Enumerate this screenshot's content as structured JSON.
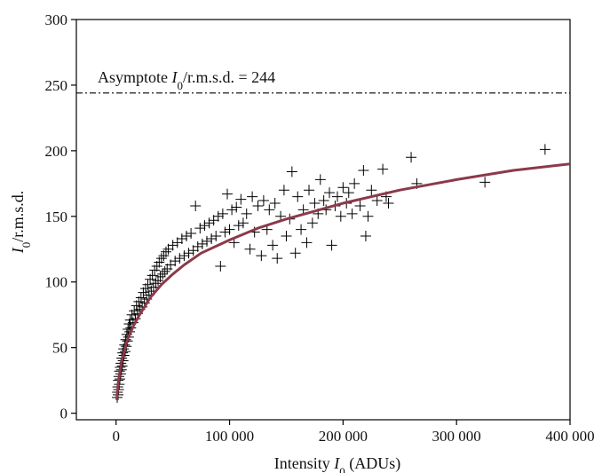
{
  "chart_data": {
    "type": "scatter",
    "title": "",
    "xlabel": {
      "main": "Intensity ",
      "italic": "I",
      "sub": "0",
      "tail": " (ADUs)"
    },
    "ylabel": {
      "italic": "I",
      "sub": "0",
      "tail": "/r.m.s.d."
    },
    "xlim": [
      -35000,
      400000
    ],
    "ylim": [
      -5,
      300
    ],
    "xticks": [
      0,
      100000,
      200000,
      300000,
      400000
    ],
    "xtick_labels": [
      "0",
      "100 000",
      "200 000",
      "300 000",
      "400 000"
    ],
    "yticks": [
      0,
      50,
      100,
      150,
      200,
      250,
      300
    ],
    "ytick_labels": [
      "0",
      "50",
      "100",
      "150",
      "200",
      "250",
      "300"
    ],
    "grid": false,
    "asymptote": {
      "y": 244,
      "label_pre": "Asymptote ",
      "label_italic": "I",
      "label_sub": "0",
      "label_post": "/r.m.s.d. = 244",
      "style": "dash-dot",
      "color": "#000000"
    },
    "fit_curve": {
      "color": "#8b3a4a",
      "x": [
        500,
        2000,
        5000,
        10000,
        15000,
        20000,
        30000,
        40000,
        50000,
        60000,
        75000,
        100000,
        125000,
        150000,
        175000,
        200000,
        250000,
        300000,
        350000,
        400000
      ],
      "y": [
        10,
        24,
        40,
        56,
        66,
        74,
        88,
        98,
        106,
        113,
        122,
        132,
        141,
        148,
        154,
        160,
        170,
        178,
        185,
        190
      ]
    },
    "scatter": {
      "marker": "plus",
      "color": "#000000",
      "points": [
        [
          1000,
          12
        ],
        [
          1200,
          16
        ],
        [
          1500,
          20
        ],
        [
          1800,
          14
        ],
        [
          2000,
          25
        ],
        [
          2200,
          18
        ],
        [
          2500,
          28
        ],
        [
          2800,
          22
        ],
        [
          3000,
          32
        ],
        [
          3300,
          26
        ],
        [
          3600,
          35
        ],
        [
          4000,
          30
        ],
        [
          4300,
          38
        ],
        [
          4700,
          33
        ],
        [
          5000,
          42
        ],
        [
          5400,
          36
        ],
        [
          5800,
          46
        ],
        [
          6200,
          40
        ],
        [
          6600,
          49
        ],
        [
          7000,
          44
        ],
        [
          7500,
          52
        ],
        [
          8000,
          47
        ],
        [
          8500,
          56
        ],
        [
          9000,
          51
        ],
        [
          9500,
          60
        ],
        [
          10000,
          55
        ],
        [
          10500,
          64
        ],
        [
          11000,
          58
        ],
        [
          11500,
          68
        ],
        [
          12000,
          62
        ],
        [
          12500,
          71
        ],
        [
          13000,
          65
        ],
        [
          14000,
          75
        ],
        [
          15000,
          69
        ],
        [
          16000,
          78
        ],
        [
          17000,
          72
        ],
        [
          18000,
          82
        ],
        [
          19000,
          76
        ],
        [
          20000,
          85
        ],
        [
          21000,
          79
        ],
        [
          22000,
          88
        ],
        [
          23000,
          81
        ],
        [
          24000,
          92
        ],
        [
          25000,
          84
        ],
        [
          26000,
          95
        ],
        [
          27000,
          87
        ],
        [
          28000,
          98
        ],
        [
          29000,
          90
        ],
        [
          30000,
          102
        ],
        [
          31000,
          93
        ],
        [
          32000,
          105
        ],
        [
          33000,
          96
        ],
        [
          34000,
          109
        ],
        [
          35000,
          99
        ],
        [
          36000,
          112
        ],
        [
          37000,
          101
        ],
        [
          38000,
          115
        ],
        [
          39000,
          104
        ],
        [
          40000,
          118
        ],
        [
          41000,
          106
        ],
        [
          42000,
          120
        ],
        [
          43000,
          108
        ],
        [
          44000,
          123
        ],
        [
          45000,
          110
        ],
        [
          46000,
          125
        ],
        [
          48000,
          113
        ],
        [
          50000,
          128
        ],
        [
          52000,
          116
        ],
        [
          54000,
          130
        ],
        [
          56000,
          118
        ],
        [
          58000,
          133
        ],
        [
          60000,
          120
        ],
        [
          62000,
          135
        ],
        [
          64000,
          122
        ],
        [
          66000,
          137
        ],
        [
          68000,
          124
        ],
        [
          70000,
          158
        ],
        [
          72000,
          127
        ],
        [
          74000,
          141
        ],
        [
          76000,
          129
        ],
        [
          78000,
          143
        ],
        [
          80000,
          131
        ],
        [
          82000,
          145
        ],
        [
          84000,
          133
        ],
        [
          86000,
          147
        ],
        [
          88000,
          135
        ],
        [
          90000,
          150
        ],
        [
          92000,
          112
        ],
        [
          94000,
          152
        ],
        [
          96000,
          138
        ],
        [
          98000,
          167
        ],
        [
          100000,
          140
        ],
        [
          102000,
          155
        ],
        [
          104000,
          130
        ],
        [
          106000,
          157
        ],
        [
          108000,
          143
        ],
        [
          110000,
          163
        ],
        [
          112000,
          145
        ],
        [
          115000,
          152
        ],
        [
          118000,
          125
        ],
        [
          120000,
          165
        ],
        [
          122000,
          138
        ],
        [
          125000,
          158
        ],
        [
          128000,
          120
        ],
        [
          130000,
          162
        ],
        [
          133000,
          140
        ],
        [
          135000,
          155
        ],
        [
          138000,
          128
        ],
        [
          140000,
          160
        ],
        [
          142000,
          118
        ],
        [
          145000,
          150
        ],
        [
          148000,
          170
        ],
        [
          150000,
          135
        ],
        [
          153000,
          148
        ],
        [
          155000,
          184
        ],
        [
          158000,
          122
        ],
        [
          160000,
          165
        ],
        [
          163000,
          140
        ],
        [
          165000,
          155
        ],
        [
          168000,
          130
        ],
        [
          170000,
          170
        ],
        [
          173000,
          145
        ],
        [
          175000,
          160
        ],
        [
          178000,
          152
        ],
        [
          180000,
          178
        ],
        [
          183000,
          162
        ],
        [
          185000,
          155
        ],
        [
          188000,
          168
        ],
        [
          190000,
          128
        ],
        [
          193000,
          158
        ],
        [
          195000,
          165
        ],
        [
          198000,
          150
        ],
        [
          200000,
          172
        ],
        [
          203000,
          160
        ],
        [
          205000,
          168
        ],
        [
          208000,
          152
        ],
        [
          210000,
          175
        ],
        [
          215000,
          158
        ],
        [
          218000,
          185
        ],
        [
          220000,
          135
        ],
        [
          222000,
          150
        ],
        [
          225000,
          170
        ],
        [
          230000,
          162
        ],
        [
          235000,
          186
        ],
        [
          238000,
          165
        ],
        [
          240000,
          160
        ],
        [
          260000,
          195
        ],
        [
          265000,
          175
        ],
        [
          325000,
          176
        ],
        [
          378000,
          201
        ]
      ]
    }
  }
}
